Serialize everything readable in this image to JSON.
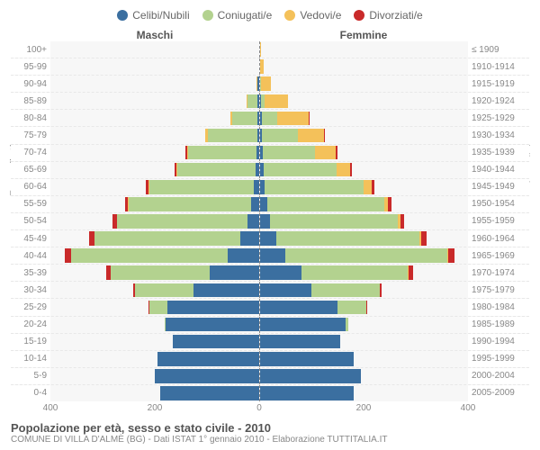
{
  "legend": [
    {
      "label": "Celibi/Nubili",
      "color": "#3b6fa0"
    },
    {
      "label": "Coniugati/e",
      "color": "#b3d28f"
    },
    {
      "label": "Vedovi/e",
      "color": "#f4c15a"
    },
    {
      "label": "Divorziati/e",
      "color": "#c92a2a"
    }
  ],
  "header_male": "Maschi",
  "header_female": "Femmine",
  "ylabel_left": "Fasce di età",
  "ylabel_right": "Anni di nascita",
  "title": "Popolazione per età, sesso e stato civile - 2010",
  "subtitle": "COMUNE DI VILLA D'ALMÈ (BG) - Dati ISTAT 1° gennaio 2010 - Elaborazione TUTTITALIA.IT",
  "xmax": 400,
  "xticks": [
    400,
    200,
    0,
    200,
    400
  ],
  "rows": [
    {
      "age": "100+",
      "year": "≤ 1909",
      "m": [
        0,
        0,
        0,
        0
      ],
      "f": [
        0,
        0,
        1,
        0
      ]
    },
    {
      "age": "95-99",
      "year": "1910-1914",
      "m": [
        0,
        0,
        0,
        0
      ],
      "f": [
        0,
        0,
        7,
        0
      ]
    },
    {
      "age": "90-94",
      "year": "1915-1919",
      "m": [
        2,
        1,
        2,
        0
      ],
      "f": [
        1,
        1,
        20,
        0
      ]
    },
    {
      "age": "85-89",
      "year": "1920-1924",
      "m": [
        3,
        18,
        3,
        0
      ],
      "f": [
        2,
        8,
        45,
        0
      ]
    },
    {
      "age": "80-84",
      "year": "1925-1929",
      "m": [
        3,
        48,
        4,
        0
      ],
      "f": [
        4,
        30,
        60,
        1
      ]
    },
    {
      "age": "75-79",
      "year": "1930-1934",
      "m": [
        3,
        95,
        4,
        1
      ],
      "f": [
        4,
        70,
        50,
        2
      ]
    },
    {
      "age": "70-74",
      "year": "1935-1939",
      "m": [
        5,
        130,
        3,
        3
      ],
      "f": [
        6,
        100,
        40,
        3
      ]
    },
    {
      "age": "65-69",
      "year": "1940-1944",
      "m": [
        6,
        150,
        2,
        4
      ],
      "f": [
        8,
        140,
        25,
        4
      ]
    },
    {
      "age": "60-64",
      "year": "1945-1949",
      "m": [
        10,
        200,
        2,
        5
      ],
      "f": [
        10,
        190,
        15,
        5
      ]
    },
    {
      "age": "55-59",
      "year": "1950-1954",
      "m": [
        15,
        235,
        1,
        6
      ],
      "f": [
        14,
        225,
        8,
        6
      ]
    },
    {
      "age": "50-54",
      "year": "1955-1959",
      "m": [
        22,
        250,
        1,
        8
      ],
      "f": [
        20,
        245,
        5,
        8
      ]
    },
    {
      "age": "45-49",
      "year": "1960-1964",
      "m": [
        35,
        280,
        1,
        10
      ],
      "f": [
        32,
        275,
        3,
        10
      ]
    },
    {
      "age": "40-44",
      "year": "1965-1969",
      "m": [
        60,
        300,
        0,
        12
      ],
      "f": [
        50,
        310,
        2,
        12
      ]
    },
    {
      "age": "35-39",
      "year": "1970-1974",
      "m": [
        95,
        190,
        0,
        8
      ],
      "f": [
        80,
        205,
        1,
        8
      ]
    },
    {
      "age": "30-34",
      "year": "1975-1979",
      "m": [
        125,
        112,
        0,
        4
      ],
      "f": [
        100,
        130,
        0,
        4
      ]
    },
    {
      "age": "25-29",
      "year": "1980-1984",
      "m": [
        175,
        35,
        0,
        1
      ],
      "f": [
        150,
        55,
        0,
        1
      ]
    },
    {
      "age": "20-24",
      "year": "1985-1989",
      "m": [
        178,
        3,
        0,
        0
      ],
      "f": [
        165,
        6,
        0,
        0
      ]
    },
    {
      "age": "15-19",
      "year": "1990-1994",
      "m": [
        165,
        0,
        0,
        0
      ],
      "f": [
        155,
        0,
        0,
        0
      ]
    },
    {
      "age": "10-14",
      "year": "1995-1999",
      "m": [
        195,
        0,
        0,
        0
      ],
      "f": [
        180,
        0,
        0,
        0
      ]
    },
    {
      "age": "5-9",
      "year": "2000-2004",
      "m": [
        200,
        0,
        0,
        0
      ],
      "f": [
        195,
        0,
        0,
        0
      ]
    },
    {
      "age": "0-4",
      "year": "2005-2009",
      "m": [
        190,
        0,
        0,
        0
      ],
      "f": [
        180,
        0,
        0,
        0
      ]
    }
  ]
}
